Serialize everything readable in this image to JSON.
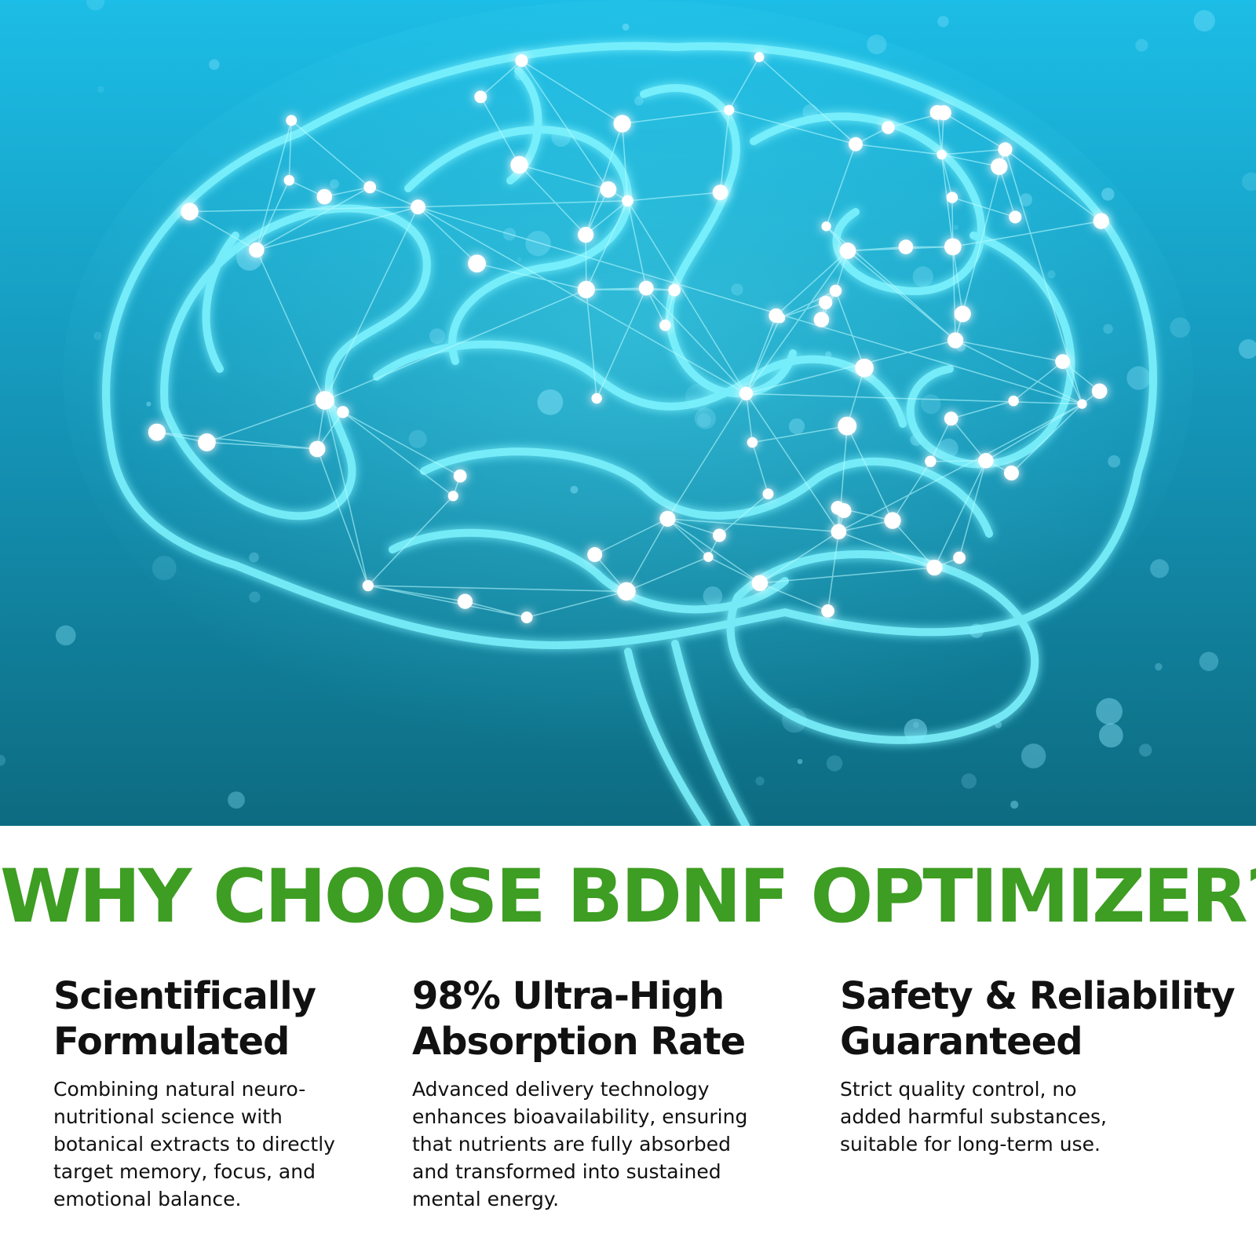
{
  "title": "WHY CHOOSE BDNF OPTIMIZER?",
  "features": [
    {
      "heading": [
        "Scientifically",
        "Formulated"
      ],
      "body": "Combining natural neuro-nutritional science with botanical extracts to directly target memory, focus, and emotional balance."
    },
    {
      "heading": [
        "98% Ultra-High",
        "Absorption Rate"
      ],
      "body": "Advanced delivery technology enhances bioavailability, ensuring that nutrients are fully absorbed and transformed into sustained mental energy."
    },
    {
      "heading": [
        "Safety & Reliability",
        "Guaranteed"
      ],
      "body": "Strict quality control, no added harmful substances, suitable for long-term use."
    }
  ]
}
